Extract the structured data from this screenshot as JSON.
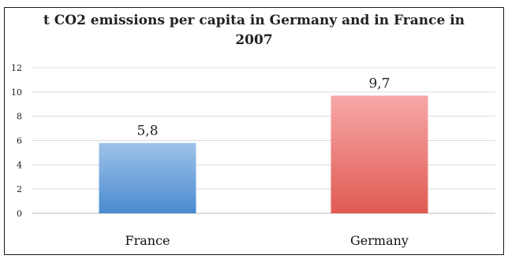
{
  "chart_data": {
    "type": "bar",
    "title_line1": "t CO2 emissions per capita in Germany and in France in",
    "title_line2": "2007",
    "categories": [
      "France",
      "Germany"
    ],
    "values": [
      5.8,
      9.7
    ],
    "data_labels": [
      "5,8",
      "9,7"
    ],
    "ylim": [
      0,
      12
    ],
    "yticks": [
      0,
      2,
      4,
      6,
      8,
      10,
      12
    ],
    "grid": true,
    "legend": "none",
    "colors": {
      "France": [
        "#9ec2e8",
        "#4a8bd0"
      ],
      "Germany": [
        "#f6a8a8",
        "#e05a52"
      ]
    }
  }
}
